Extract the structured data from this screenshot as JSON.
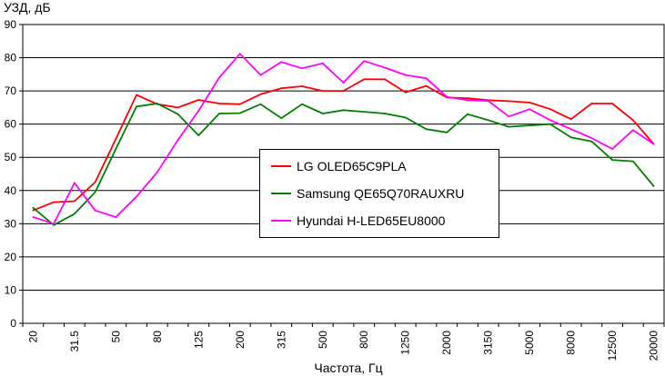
{
  "chart_data": {
    "type": "line",
    "ylabel": "УЗД, дБ",
    "xlabel": "Частота, Гц",
    "ylim": [
      0,
      90
    ],
    "yticks": [
      0,
      10,
      20,
      30,
      40,
      50,
      60,
      70,
      80,
      90
    ],
    "grid": "horizontal",
    "legend_position": "center",
    "x": [
      "20",
      "25",
      "31.5",
      "40",
      "50",
      "63",
      "80",
      "100",
      "125",
      "160",
      "200",
      "250",
      "315",
      "400",
      "500",
      "630",
      "800",
      "1000",
      "1250",
      "1600",
      "2000",
      "2500",
      "3150",
      "4000",
      "5000",
      "6300",
      "8000",
      "10000",
      "12500",
      "16000",
      "20000"
    ],
    "xtick_labels": [
      "20",
      "",
      "31.5",
      "",
      "50",
      "",
      "80",
      "",
      "125",
      "",
      "200",
      "",
      "315",
      "",
      "500",
      "",
      "800",
      "",
      "1250",
      "",
      "2000",
      "",
      "3150",
      "",
      "5000",
      "",
      "8000",
      "",
      "12500",
      "",
      "20000"
    ],
    "series": [
      {
        "name": "LG OLED65C9PLA",
        "color": "#ff0000",
        "values": [
          34.0,
          36.5,
          36.8,
          42.5,
          55.5,
          68.8,
          66.0,
          65.0,
          67.3,
          66.2,
          66.0,
          69.0,
          70.8,
          71.4,
          70.0,
          70.0,
          73.5,
          73.5,
          69.6,
          71.5,
          68.0,
          67.8,
          67.2,
          66.9,
          66.5,
          64.5,
          61.5,
          66.2,
          66.2,
          61.2,
          54.0
        ]
      },
      {
        "name": "Samsung QE65Q70RAUXRU",
        "color": "#008000",
        "values": [
          34.8,
          29.6,
          33.0,
          39.5,
          52.5,
          65.3,
          66.2,
          63.0,
          56.6,
          63.2,
          63.3,
          66.0,
          61.8,
          66.0,
          63.2,
          64.2,
          63.7,
          63.2,
          62.0,
          58.5,
          57.5,
          63.0,
          61.2,
          59.2,
          59.6,
          60.0,
          56.0,
          54.8,
          49.2,
          48.8,
          41.3
        ]
      },
      {
        "name": "Hyundai H-LED65EU8000",
        "color": "#ff00ff",
        "values": [
          32.0,
          30.0,
          42.3,
          34.0,
          32.0,
          38.2,
          45.5,
          55.2,
          64.0,
          74.0,
          81.2,
          74.8,
          78.7,
          76.8,
          78.3,
          72.5,
          79.0,
          77.0,
          74.8,
          73.8,
          68.2,
          67.2,
          67.0,
          62.3,
          64.5,
          61.2,
          58.5,
          55.8,
          52.5,
          58.2,
          54.0
        ]
      }
    ]
  }
}
